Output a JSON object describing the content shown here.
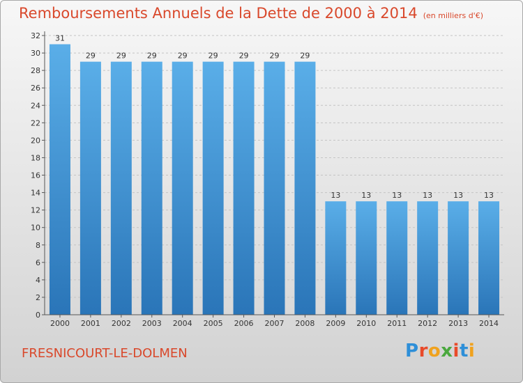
{
  "header": {
    "title": "Remboursements Annuels de la Dette de 2000 à 2014",
    "unit": "(en milliers d'€)"
  },
  "footer": {
    "commune": "FRESNICOURT-LE-DOLMEN",
    "logo_text": "Proxiti"
  },
  "colors": {
    "title": "#d9482b",
    "bar_top": "#5aaee8",
    "bar_bottom": "#2a75b8",
    "logo": [
      "#2e8fd8",
      "#e84a2a",
      "#f0a21e",
      "#4aa83e",
      "#e84a2a",
      "#2e8fd8",
      "#f0a21e"
    ]
  },
  "chart_data": {
    "type": "bar",
    "categories": [
      "2000",
      "2001",
      "2002",
      "2003",
      "2004",
      "2005",
      "2006",
      "2007",
      "2008",
      "2009",
      "2010",
      "2011",
      "2012",
      "2013",
      "2014"
    ],
    "values": [
      31,
      29,
      29,
      29,
      29,
      29,
      29,
      29,
      29,
      13,
      13,
      13,
      13,
      13,
      13
    ],
    "data_labels": [
      "31",
      "29",
      "29",
      "29",
      "29",
      "29",
      "29",
      "29",
      "29",
      "13",
      "13",
      "13",
      "13",
      "13",
      "13"
    ],
    "ylim": [
      0,
      32
    ],
    "yticks": [
      0,
      2,
      4,
      6,
      8,
      10,
      12,
      14,
      16,
      18,
      20,
      22,
      24,
      26,
      28,
      30,
      32
    ],
    "grid": true
  }
}
